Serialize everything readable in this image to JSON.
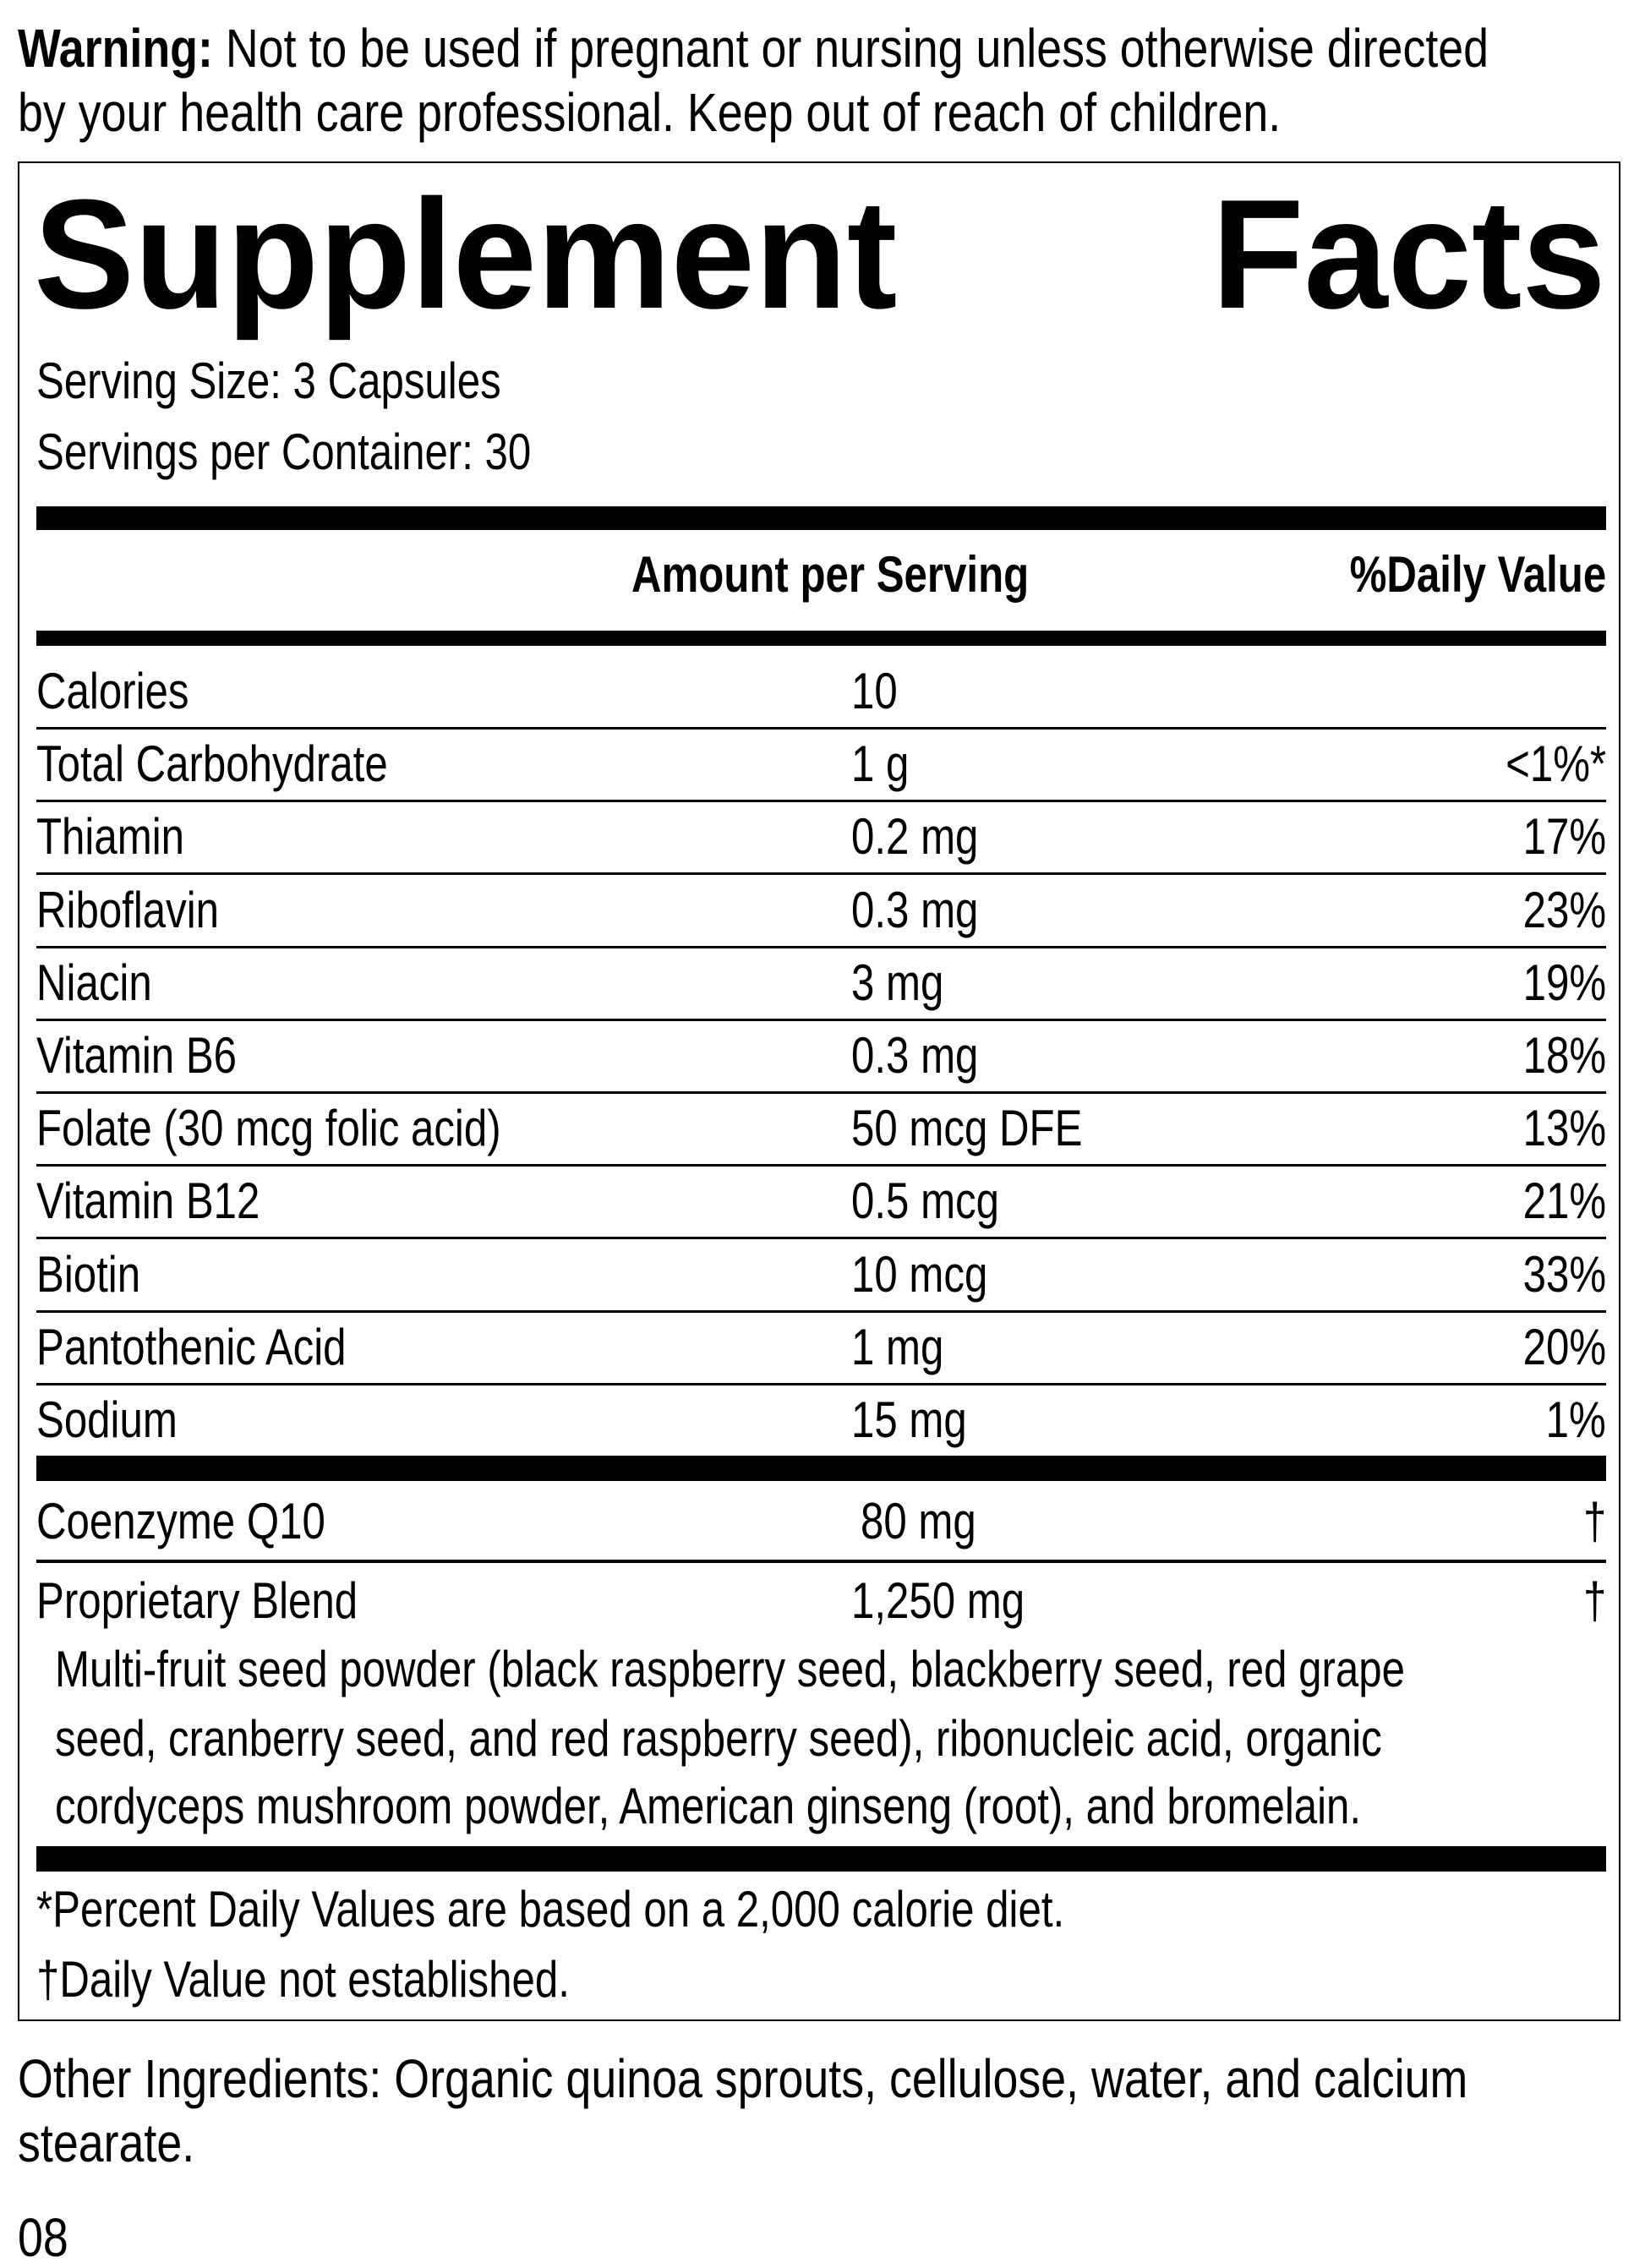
{
  "warning": {
    "label": "Warning:",
    "line1": "Not to be used if pregnant or nursing unless otherwise directed",
    "line2": "by your health care professional. Keep out of reach of children."
  },
  "facts": {
    "title_word1": "Supplement",
    "title_word2": "Facts",
    "serving_size": "Serving Size: 3 Capsules",
    "servings_per_container": "Servings per Container: 30",
    "header_amount": "Amount per Serving",
    "header_dv": "%Daily Value",
    "rows": [
      {
        "name": "Calories",
        "amount": "10",
        "dv": ""
      },
      {
        "name": "Total Carbohydrate",
        "amount": "1 g",
        "dv": "<1%*"
      },
      {
        "name": "Thiamin",
        "amount": "0.2 mg",
        "dv": "17%"
      },
      {
        "name": "Riboflavin",
        "amount": "0.3 mg",
        "dv": "23%"
      },
      {
        "name": "Niacin",
        "amount": "3 mg",
        "dv": "19%"
      },
      {
        "name": "Vitamin B6",
        "amount": "0.3 mg",
        "dv": "18%"
      },
      {
        "name": "Folate (30 mcg folic acid)",
        "amount": "50 mcg DFE",
        "dv": "13%"
      },
      {
        "name": "Vitamin B12",
        "amount": "0.5 mcg",
        "dv": "21%"
      },
      {
        "name": "Biotin",
        "amount": "10 mcg",
        "dv": "33%"
      },
      {
        "name": "Pantothenic Acid",
        "amount": "1 mg",
        "dv": "20%"
      },
      {
        "name": "Sodium",
        "amount": "15 mg",
        "dv": "1%"
      }
    ],
    "coq10": {
      "name": "Coenzyme Q10",
      "amount": "80 mg",
      "dv": "†"
    },
    "blend": {
      "name": "Proprietary Blend",
      "amount": "1,250 mg",
      "dv": "†",
      "lines": [
        "Multi-fruit seed powder (black raspberry seed, blackberry seed, red grape",
        "seed, cranberry seed, and red raspberry seed), ribonucleic acid, organic",
        "cordyceps mushroom powder, American ginseng (root), and bromelain."
      ]
    },
    "footnote1": "*Percent Daily Values are based on a 2,000 calorie diet.",
    "footnote2": "†Daily Value not established."
  },
  "other_ingredients": {
    "line1": "Other Ingredients: Organic quinoa sprouts, cellulose, water, and calcium",
    "line2": "stearate."
  },
  "code": "08"
}
